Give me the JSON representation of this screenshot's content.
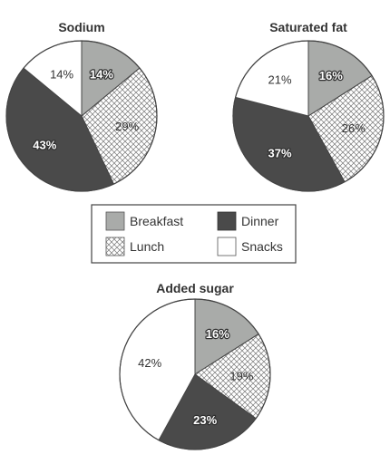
{
  "palette": {
    "Breakfast": "#a9aba9",
    "Lunch": "hatch",
    "Dinner": "#4a4a4a",
    "Snacks": "#ffffff"
  },
  "legend": {
    "entries": [
      "Breakfast",
      "Dinner",
      "Lunch",
      "Snacks"
    ]
  },
  "chart_data": [
    {
      "type": "pie",
      "title": "Sodium",
      "categories": [
        "Breakfast",
        "Lunch",
        "Dinner",
        "Snacks"
      ],
      "values": [
        14,
        29,
        43,
        14
      ],
      "labels": [
        "14%",
        "29%",
        "43%",
        "14%"
      ]
    },
    {
      "type": "pie",
      "title": "Saturated fat",
      "categories": [
        "Breakfast",
        "Lunch",
        "Dinner",
        "Snacks"
      ],
      "values": [
        16,
        26,
        37,
        21
      ],
      "labels": [
        "16%",
        "26%",
        "37%",
        "21%"
      ]
    },
    {
      "type": "pie",
      "title": "Added sugar",
      "categories": [
        "Breakfast",
        "Lunch",
        "Dinner",
        "Snacks"
      ],
      "values": [
        16,
        19,
        23,
        42
      ],
      "labels": [
        "16%",
        "19%",
        "23%",
        "42%"
      ]
    }
  ]
}
